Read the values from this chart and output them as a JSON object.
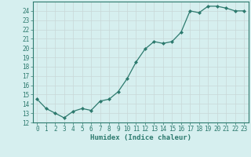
{
  "x": [
    0,
    1,
    2,
    3,
    4,
    5,
    6,
    7,
    8,
    9,
    10,
    11,
    12,
    13,
    14,
    15,
    16,
    17,
    18,
    19,
    20,
    21,
    22,
    23
  ],
  "y": [
    14.5,
    13.5,
    13.0,
    12.5,
    13.2,
    13.5,
    13.3,
    14.3,
    14.5,
    15.3,
    16.7,
    18.5,
    19.9,
    20.7,
    20.5,
    20.7,
    21.7,
    24.0,
    23.8,
    24.5,
    24.5,
    24.3,
    24.0,
    24.0
  ],
  "line_color": "#2d7a6e",
  "marker": "D",
  "marker_size": 2.0,
  "bg_color": "#d6efef",
  "grid_color": "#c8d8d8",
  "xlabel": "Humidex (Indice chaleur)",
  "ylim": [
    12,
    25
  ],
  "xlim": [
    -0.5,
    23.5
  ],
  "yticks": [
    12,
    13,
    14,
    15,
    16,
    17,
    18,
    19,
    20,
    21,
    22,
    23,
    24
  ],
  "xticks": [
    0,
    1,
    2,
    3,
    4,
    5,
    6,
    7,
    8,
    9,
    10,
    11,
    12,
    13,
    14,
    15,
    16,
    17,
    18,
    19,
    20,
    21,
    22,
    23
  ],
  "tick_fontsize": 5.5,
  "xlabel_fontsize": 6.5,
  "line_width": 0.9,
  "grid_linewidth": 0.5,
  "spine_color": "#2d7a6e",
  "text_color": "#2d7a6e"
}
